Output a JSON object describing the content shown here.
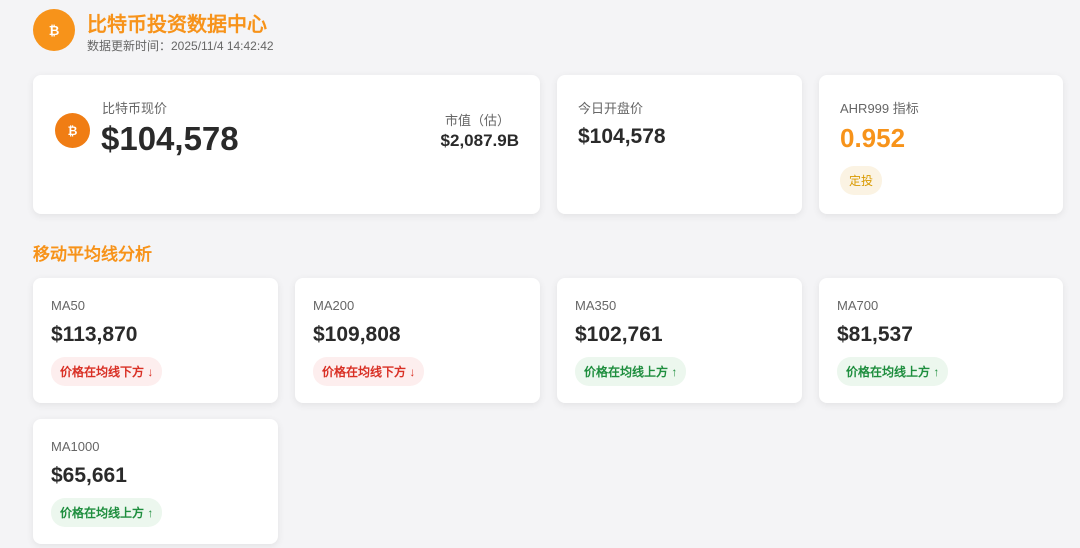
{
  "header": {
    "icon": "₿",
    "title": "比特币投资数据中心",
    "subtitle": "数据更新时间：2025/11/4 14:42:42"
  },
  "price_card": {
    "icon": "₿",
    "label": "比特币现价",
    "value": "$104,578",
    "market_cap_label": "市值（估）",
    "market_cap": "$2,087.9B"
  },
  "open_card": {
    "label": "今日开盘价",
    "value": "$104,578"
  },
  "ahr_card": {
    "label": "AHR999 指标",
    "value": "0.952",
    "tag": "定投"
  },
  "ma_section": {
    "title": "移动平均线分析",
    "items": [
      {
        "label": "MA50",
        "value": "$113,870",
        "status": "价格在均线下方 ↓",
        "color": "#d93025",
        "background": "#fdeeee"
      },
      {
        "label": "MA200",
        "value": "$109,808",
        "status": "价格在均线下方 ↓",
        "color": "#d93025",
        "background": "#fdeeee"
      },
      {
        "label": "MA350",
        "value": "$102,761",
        "status": "价格在均线上方 ↑",
        "color": "#1e8e3e",
        "background": "#ecf7ee"
      },
      {
        "label": "MA700",
        "value": "$81,537",
        "status": "价格在均线上方 ↑",
        "color": "#1e8e3e",
        "background": "#ecf7ee"
      },
      {
        "label": "MA1000",
        "value": "$65,661",
        "status": "价格在均线上方 ↑",
        "color": "#1e8e3e",
        "background": "#ecf7ee"
      }
    ]
  }
}
